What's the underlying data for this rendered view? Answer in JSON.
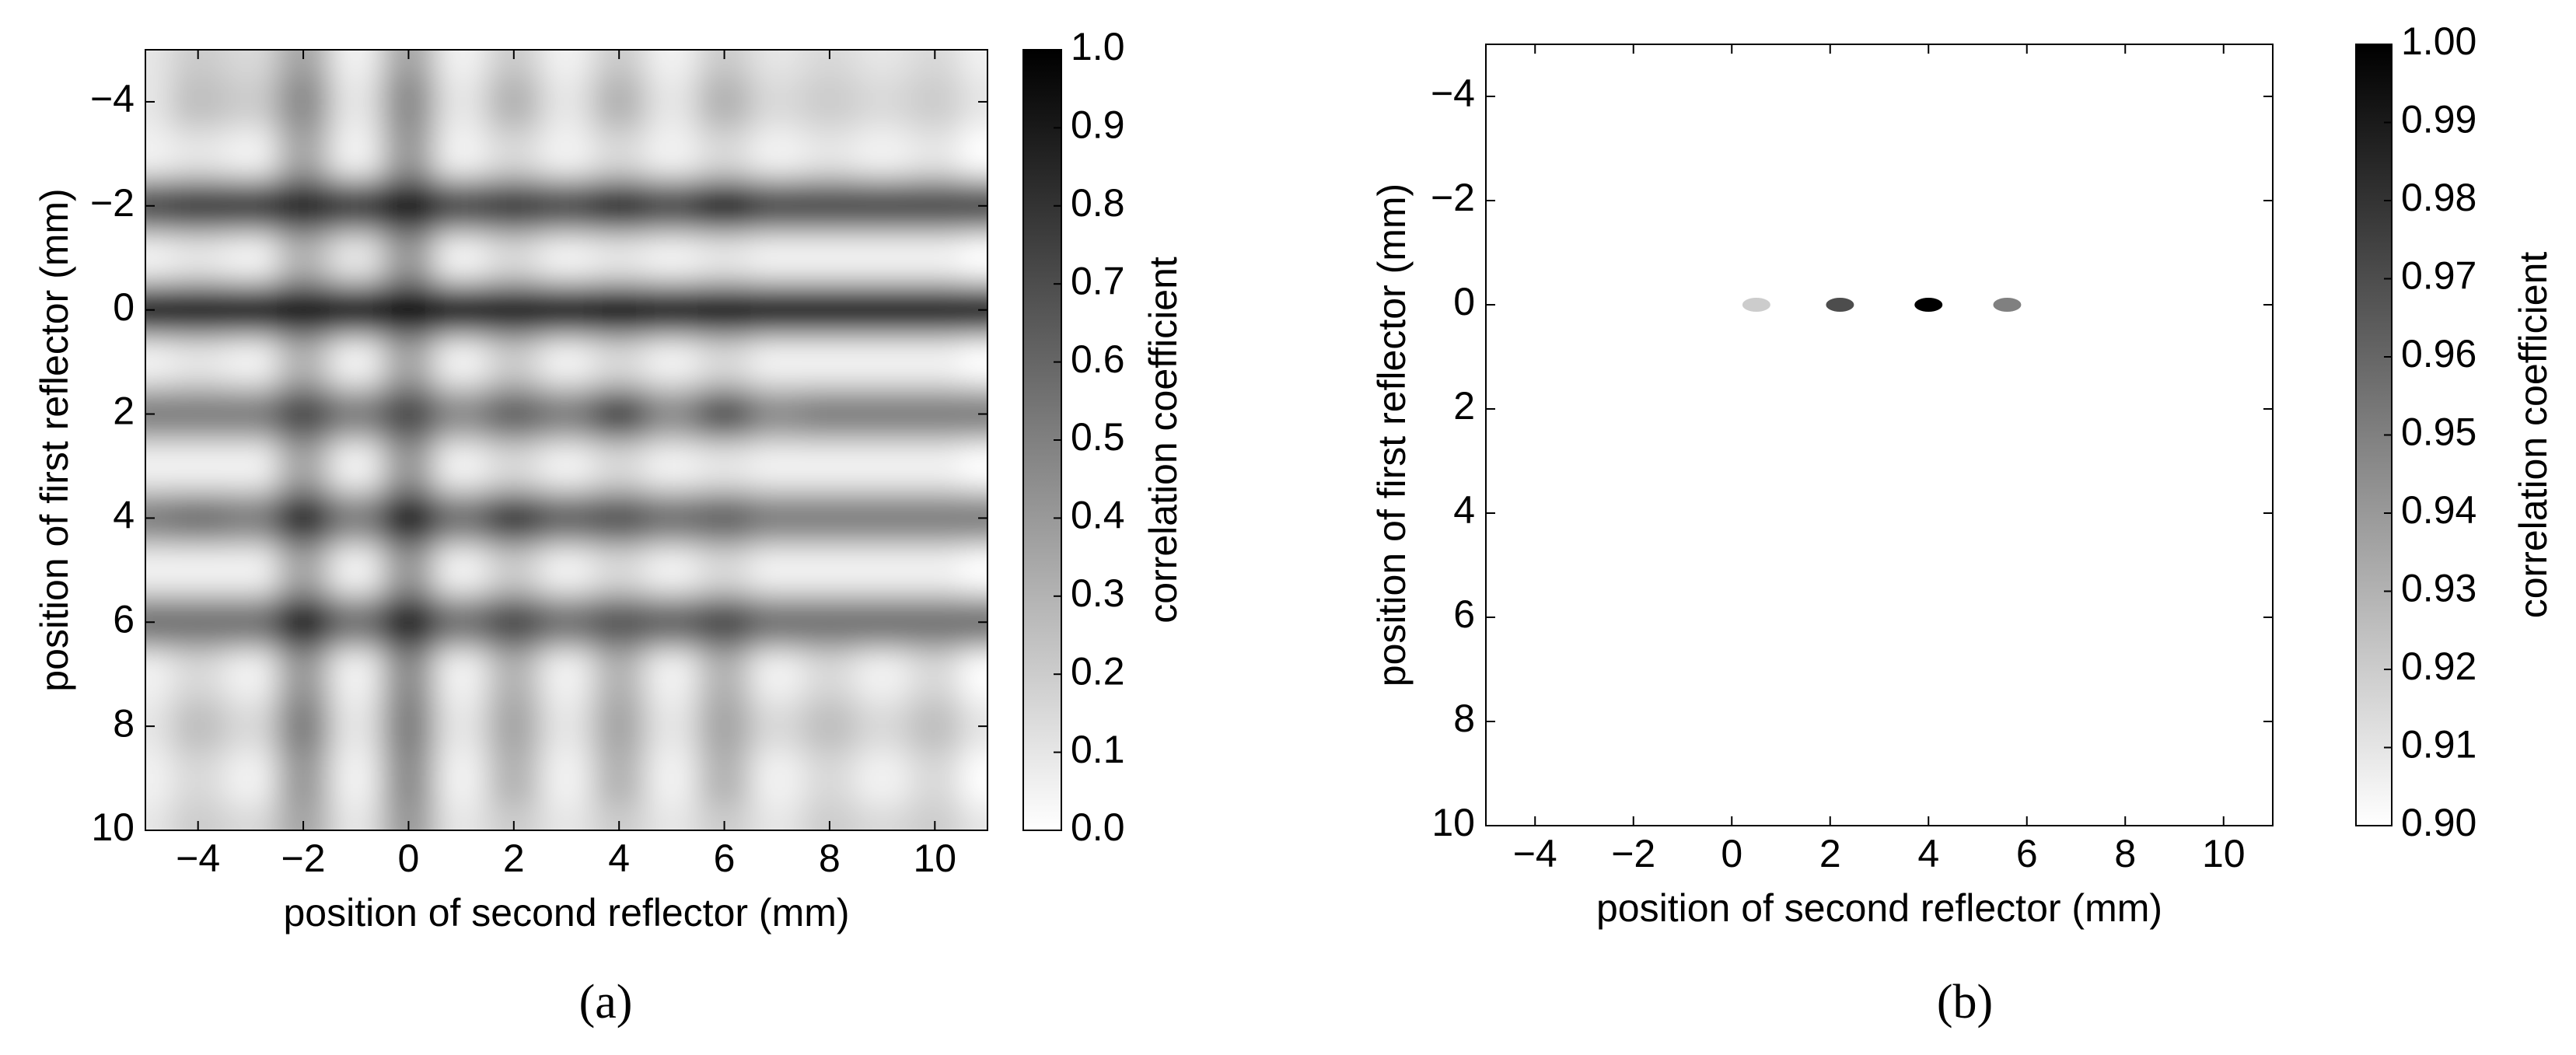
{
  "chart_data": [
    {
      "type": "heatmap",
      "caption": "(a)",
      "x_label": "position of second reflector (mm)",
      "y_label": "position of first reflector (mm)",
      "xlim": [
        -5,
        11
      ],
      "ylim": [
        10,
        -5
      ],
      "xticks": [
        {
          "value": -4,
          "label": "−4"
        },
        {
          "value": -2,
          "label": "−2"
        },
        0,
        2,
        4,
        6,
        8,
        10
      ],
      "yticks": [
        {
          "value": -4,
          "label": "−4"
        },
        {
          "value": -2,
          "label": "−2"
        },
        0,
        2,
        4,
        6,
        8,
        10
      ],
      "colormap": "gray_r",
      "colorbar": {
        "label": "correlation coefficient",
        "lim": [
          0,
          1
        ],
        "ticks": [
          {
            "value": 0,
            "label": "0.0"
          },
          0.1,
          0.2,
          0.3,
          0.4,
          0.5,
          0.6,
          0.7,
          0.8,
          0.9,
          {
            "value": 1,
            "label": "1.0"
          }
        ]
      },
      "x": [
        -5,
        -4,
        -3,
        -2,
        -1,
        0,
        1,
        2,
        3,
        4,
        5,
        6,
        7,
        8,
        9,
        10,
        11
      ],
      "y": [
        -5,
        -4,
        -3,
        -2,
        -1,
        0,
        1,
        2,
        3,
        4,
        5,
        6,
        7,
        8,
        9,
        10
      ],
      "z": [
        [
          0.1,
          0.2,
          0.15,
          0.35,
          0.05,
          0.35,
          0.05,
          0.2,
          0.05,
          0.2,
          0.05,
          0.2,
          0.1,
          0.15,
          0.1,
          0.15,
          0.05
        ],
        [
          0.1,
          0.25,
          0.2,
          0.45,
          0.1,
          0.45,
          0.1,
          0.3,
          0.1,
          0.3,
          0.1,
          0.3,
          0.15,
          0.2,
          0.15,
          0.2,
          0.1
        ],
        [
          0.05,
          0.1,
          0.05,
          0.35,
          0.05,
          0.4,
          0.05,
          0.15,
          0.05,
          0.15,
          0.05,
          0.15,
          0.05,
          0.1,
          0.05,
          0.1,
          0
        ],
        [
          0.7,
          0.75,
          0.75,
          0.85,
          0.75,
          0.9,
          0.7,
          0.75,
          0.7,
          0.8,
          0.7,
          0.85,
          0.7,
          0.7,
          0.7,
          0.7,
          0.7
        ],
        [
          0.05,
          0.1,
          0.05,
          0.3,
          0.1,
          0.4,
          0.05,
          0.15,
          0.05,
          0.1,
          0.05,
          0.1,
          0.05,
          0.05,
          0.05,
          0.05,
          0
        ],
        [
          0.9,
          0.9,
          0.9,
          0.95,
          0.9,
          1.0,
          0.9,
          0.9,
          0.9,
          0.98,
          0.9,
          0.95,
          0.9,
          0.9,
          0.9,
          0.9,
          0.9
        ],
        [
          0.05,
          0.1,
          0.05,
          0.3,
          0.05,
          0.35,
          0.05,
          0.2,
          0.05,
          0.15,
          0.05,
          0.15,
          0.05,
          0.05,
          0.05,
          0.05,
          0
        ],
        [
          0.5,
          0.5,
          0.5,
          0.7,
          0.5,
          0.7,
          0.45,
          0.6,
          0.5,
          0.7,
          0.45,
          0.65,
          0.45,
          0.5,
          0.5,
          0.5,
          0.5
        ],
        [
          0.05,
          0.05,
          0.05,
          0.35,
          0.05,
          0.4,
          0.05,
          0.15,
          0.05,
          0.15,
          0.05,
          0.1,
          0.05,
          0.05,
          0.05,
          0.05,
          0
        ],
        [
          0.5,
          0.55,
          0.5,
          0.8,
          0.5,
          0.85,
          0.55,
          0.75,
          0.6,
          0.65,
          0.55,
          0.6,
          0.5,
          0.5,
          0.5,
          0.5,
          0.5
        ],
        [
          0.05,
          0.05,
          0.05,
          0.35,
          0.05,
          0.4,
          0.05,
          0.2,
          0.05,
          0.15,
          0.05,
          0.15,
          0.05,
          0.05,
          0.05,
          0.05,
          0
        ],
        [
          0.55,
          0.55,
          0.55,
          0.85,
          0.55,
          0.85,
          0.55,
          0.7,
          0.55,
          0.65,
          0.6,
          0.7,
          0.55,
          0.55,
          0.55,
          0.55,
          0.55
        ],
        [
          0.05,
          0.15,
          0.05,
          0.4,
          0.05,
          0.45,
          0.05,
          0.3,
          0.05,
          0.3,
          0.05,
          0.3,
          0.05,
          0.15,
          0.05,
          0.15,
          0
        ],
        [
          0.1,
          0.25,
          0.15,
          0.5,
          0.1,
          0.5,
          0.1,
          0.35,
          0.1,
          0.35,
          0.1,
          0.35,
          0.15,
          0.25,
          0.15,
          0.25,
          0.1
        ],
        [
          0.05,
          0.15,
          0.05,
          0.4,
          0.05,
          0.45,
          0.05,
          0.3,
          0.05,
          0.3,
          0.05,
          0.3,
          0.05,
          0.15,
          0.05,
          0.15,
          0
        ],
        [
          0.1,
          0.2,
          0.15,
          0.35,
          0.1,
          0.4,
          0.1,
          0.2,
          0.1,
          0.2,
          0.1,
          0.2,
          0.1,
          0.2,
          0.15,
          0.2,
          0.1
        ]
      ]
    },
    {
      "type": "scatter",
      "caption": "(b)",
      "x_label": "position of second reflector (mm)",
      "y_label": "position of first reflector (mm)",
      "xlim": [
        -5,
        11
      ],
      "ylim": [
        10,
        -5
      ],
      "xticks": [
        {
          "value": -4,
          "label": "−4"
        },
        {
          "value": -2,
          "label": "−2"
        },
        0,
        2,
        4,
        6,
        8,
        10
      ],
      "yticks": [
        {
          "value": -4,
          "label": "−4"
        },
        {
          "value": -2,
          "label": "−2"
        },
        0,
        2,
        4,
        6,
        8,
        10
      ],
      "colormap": "gray_r",
      "colorbar": {
        "label": "correlation coefficient",
        "lim": [
          0.9,
          1
        ],
        "ticks": [
          {
            "value": 0.9,
            "label": "0.90"
          },
          0.91,
          0.92,
          0.93,
          0.94,
          0.95,
          0.96,
          0.97,
          0.98,
          0.99,
          {
            "value": 1,
            "label": "1.00"
          }
        ]
      },
      "x": [
        0.5,
        2.2,
        4.0,
        5.6
      ],
      "y": [
        0,
        0,
        0,
        0
      ],
      "values": [
        0.92,
        0.97,
        1.0,
        0.95
      ]
    }
  ]
}
